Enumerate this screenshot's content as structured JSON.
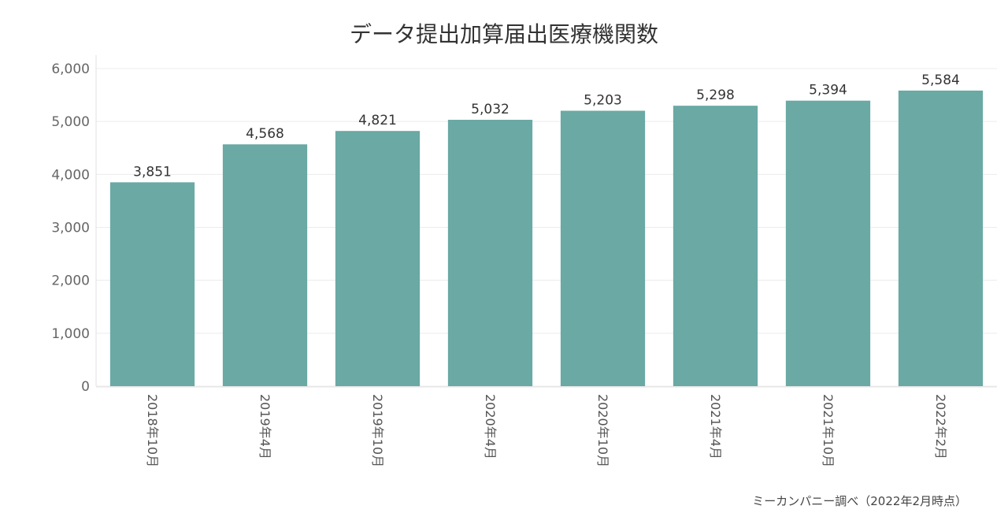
{
  "chart_data": {
    "type": "bar",
    "title": "データ提出加算届出医療機関数",
    "categories": [
      "2018年10月",
      "2019年4月",
      "2019年10月",
      "2020年4月",
      "2020年10月",
      "2021年4月",
      "2021年10月",
      "2022年2月"
    ],
    "values": [
      3851,
      4568,
      4821,
      5032,
      5203,
      5298,
      5394,
      5584
    ],
    "value_labels": [
      "3,851",
      "4,568",
      "4,821",
      "5,032",
      "5,203",
      "5,298",
      "5,394",
      "5,584"
    ],
    "yticks": [
      0,
      1000,
      2000,
      3000,
      4000,
      5000,
      6000
    ],
    "ytick_labels": [
      "0",
      "1,000",
      "2,000",
      "3,000",
      "4,000",
      "5,000",
      "6,000"
    ],
    "ylim": [
      0,
      6000
    ],
    "xlabel": "",
    "ylabel": "",
    "grid": true,
    "bar_color": "#6aa9a4"
  },
  "source_note": "ミーカンパニー調べ（2022年2月時点）"
}
